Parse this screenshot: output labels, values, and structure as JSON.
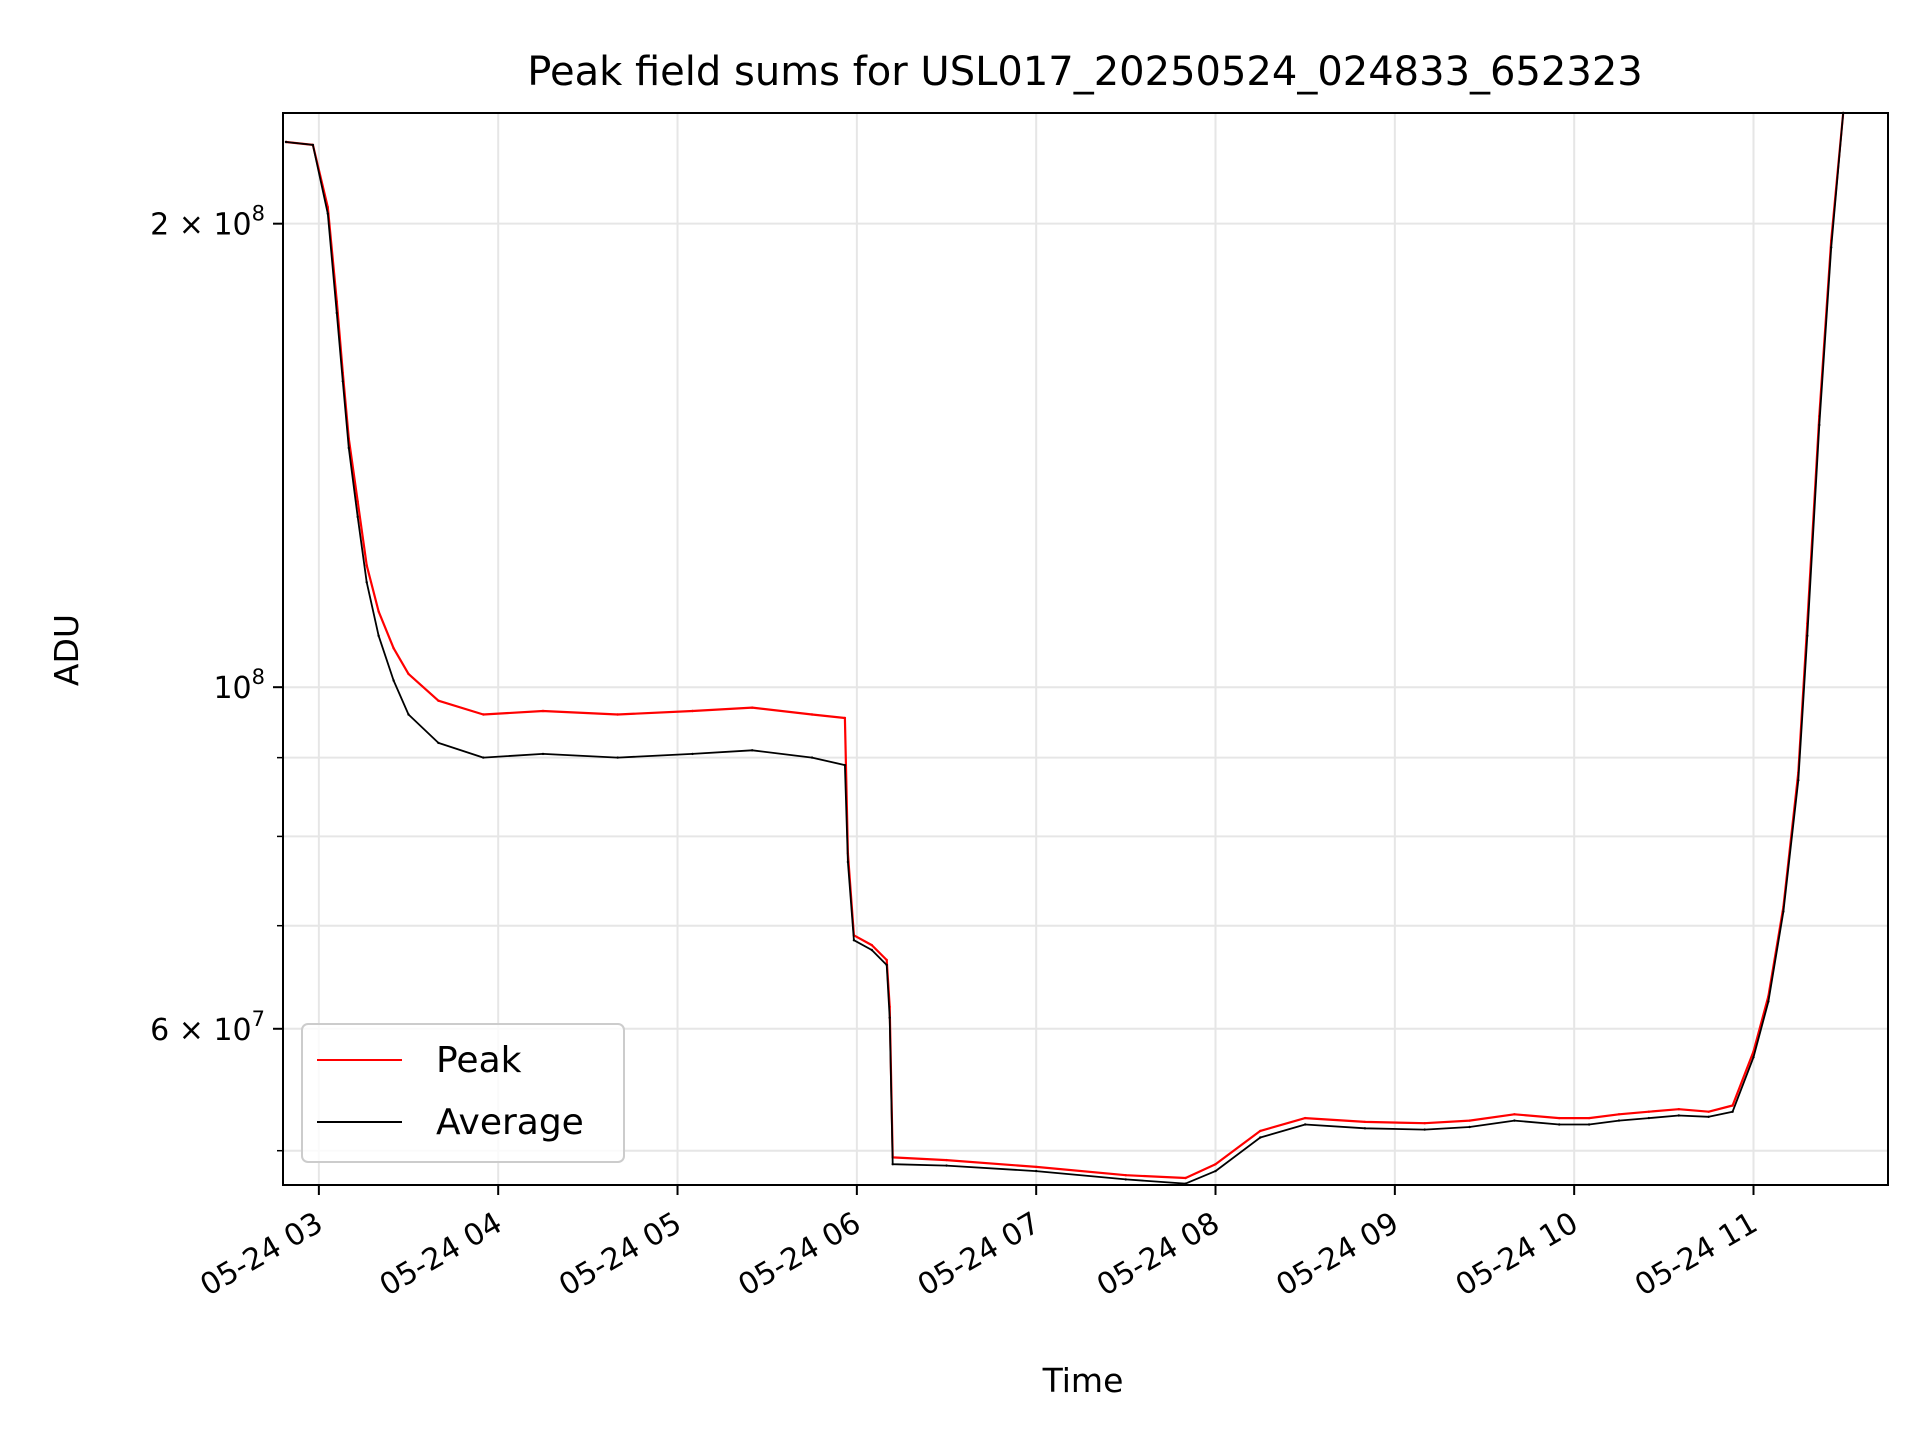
{
  "chart_data": {
    "type": "line",
    "title": "Peak field sums for USL017_20250524_024833_652323",
    "xlabel": "Time",
    "ylabel": "ADU",
    "y_scale": "log",
    "grid": true,
    "legend_position": "lower-left",
    "x_range": [
      "2025-05-24 02:48",
      "2025-05-24 11:45"
    ],
    "ylim": [
      47500000,
      236000000
    ],
    "x_ticks": [
      "05-24 03",
      "05-24 04",
      "05-24 05",
      "05-24 06",
      "05-24 07",
      "05-24 08",
      "05-24 09",
      "05-24 10",
      "05-24 11"
    ],
    "y_major_ticks": [
      {
        "value": 100000000,
        "mantissa": "",
        "base": "10",
        "exp": "8"
      },
      {
        "value": 200000000,
        "mantissa": "2 × ",
        "base": "10",
        "exp": "8"
      },
      {
        "value": 60000000,
        "mantissa": "6 × ",
        "base": "10",
        "exp": "7"
      }
    ],
    "y_minor_grid": [
      50000000,
      70000000,
      80000000,
      90000000
    ],
    "x": [
      "02:49",
      "02:58",
      "03:03",
      "03:06",
      "03:08",
      "03:10",
      "03:13",
      "03:16",
      "03:20",
      "03:25",
      "03:30",
      "03:40",
      "03:55",
      "04:15",
      "04:40",
      "05:05",
      "05:25",
      "05:45",
      "05:56",
      "05:57",
      "05:59",
      "06:05",
      "06:10",
      "06:11",
      "06:12",
      "06:30",
      "07:00",
      "07:30",
      "07:50",
      "08:00",
      "08:15",
      "08:30",
      "08:50",
      "09:10",
      "09:25",
      "09:40",
      "09:55",
      "10:05",
      "10:15",
      "10:25",
      "10:35",
      "10:45",
      "10:53",
      "11:00",
      "11:05",
      "11:10",
      "11:15",
      "11:18",
      "11:22",
      "11:26",
      "11:30"
    ],
    "series": [
      {
        "name": "Peak",
        "color": "#ff0000",
        "values": [
          226000000,
          225000000,
          205000000,
          178000000,
          160000000,
          145000000,
          132000000,
          120000000,
          112000000,
          106000000,
          102000000,
          98000000,
          96000000,
          96500000,
          96000000,
          96500000,
          97000000,
          96000000,
          95500000,
          78000000,
          69000000,
          68000000,
          66500000,
          62000000,
          49500000,
          49300000,
          48800000,
          48200000,
          48000000,
          49000000,
          51500000,
          52500000,
          52200000,
          52100000,
          52300000,
          52800000,
          52500000,
          52500000,
          52800000,
          53000000,
          53200000,
          53000000,
          53500000,
          58000000,
          63000000,
          72000000,
          88000000,
          110000000,
          150000000,
          195000000,
          236000000
        ]
      },
      {
        "name": "Average",
        "color": "#000000",
        "values": [
          226000000,
          225000000,
          203000000,
          175000000,
          158000000,
          143000000,
          129000000,
          117000000,
          108000000,
          101000000,
          96000000,
          92000000,
          90000000,
          90500000,
          90000000,
          90500000,
          91000000,
          90000000,
          89000000,
          77000000,
          68500000,
          67500000,
          66000000,
          61000000,
          49000000,
          48900000,
          48500000,
          47900000,
          47600000,
          48500000,
          51000000,
          52000000,
          51700000,
          51600000,
          51800000,
          52300000,
          52000000,
          52000000,
          52300000,
          52500000,
          52700000,
          52600000,
          53000000,
          57500000,
          62500000,
          71500000,
          87000000,
          108000000,
          148000000,
          193000000,
          236000000
        ]
      }
    ]
  }
}
